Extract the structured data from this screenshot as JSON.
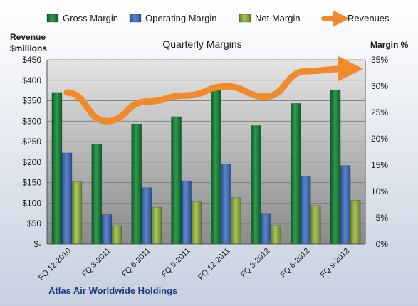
{
  "chart_data": {
    "type": "bar",
    "title": "Quarterly Margins",
    "footer": "Atlas Air Worldwide Holdings",
    "left_axis_title": [
      "Revenue",
      "$millions"
    ],
    "right_axis_title": "Margin %",
    "categories": [
      "FQ 12-2010",
      "FQ 3-2011",
      "FQ 6-2011",
      "FQ 9-2011",
      "FQ 12-2011",
      "FQ 3-2012",
      "FQ 6-2012",
      "FQ 9-2012"
    ],
    "left_ticks": [
      "$-",
      "$50",
      "$100",
      "$150",
      "$200",
      "$250",
      "$300",
      "$350",
      "$400",
      "$450"
    ],
    "right_ticks": [
      "0%",
      "5%",
      "10%",
      "15%",
      "20%",
      "25%",
      "30%",
      "35%"
    ],
    "ylim_left": [
      0,
      450
    ],
    "ylim_right": [
      0,
      35
    ],
    "grid": true,
    "legend_position": "top",
    "series": [
      {
        "name": "Gross Margin",
        "kind": "bar",
        "axis": "right",
        "color": "#1e7a3a",
        "values": [
          28.8,
          19.0,
          22.8,
          24.2,
          29.5,
          22.5,
          26.7,
          29.3
        ]
      },
      {
        "name": "Operating Margin",
        "kind": "bar",
        "axis": "right",
        "color": "#3f67b0",
        "values": [
          17.3,
          5.6,
          10.7,
          12.0,
          15.2,
          5.7,
          12.9,
          14.9
        ]
      },
      {
        "name": "Net Margin",
        "kind": "bar",
        "axis": "right",
        "color": "#8aa43c",
        "values": [
          11.8,
          3.5,
          7.0,
          8.0,
          8.8,
          3.5,
          7.3,
          8.3
        ]
      },
      {
        "name": "Revenues",
        "kind": "line",
        "axis": "left",
        "color": "#f08a2c",
        "values": [
          370,
          300,
          348,
          363,
          385,
          360,
          422,
          428
        ]
      }
    ]
  }
}
